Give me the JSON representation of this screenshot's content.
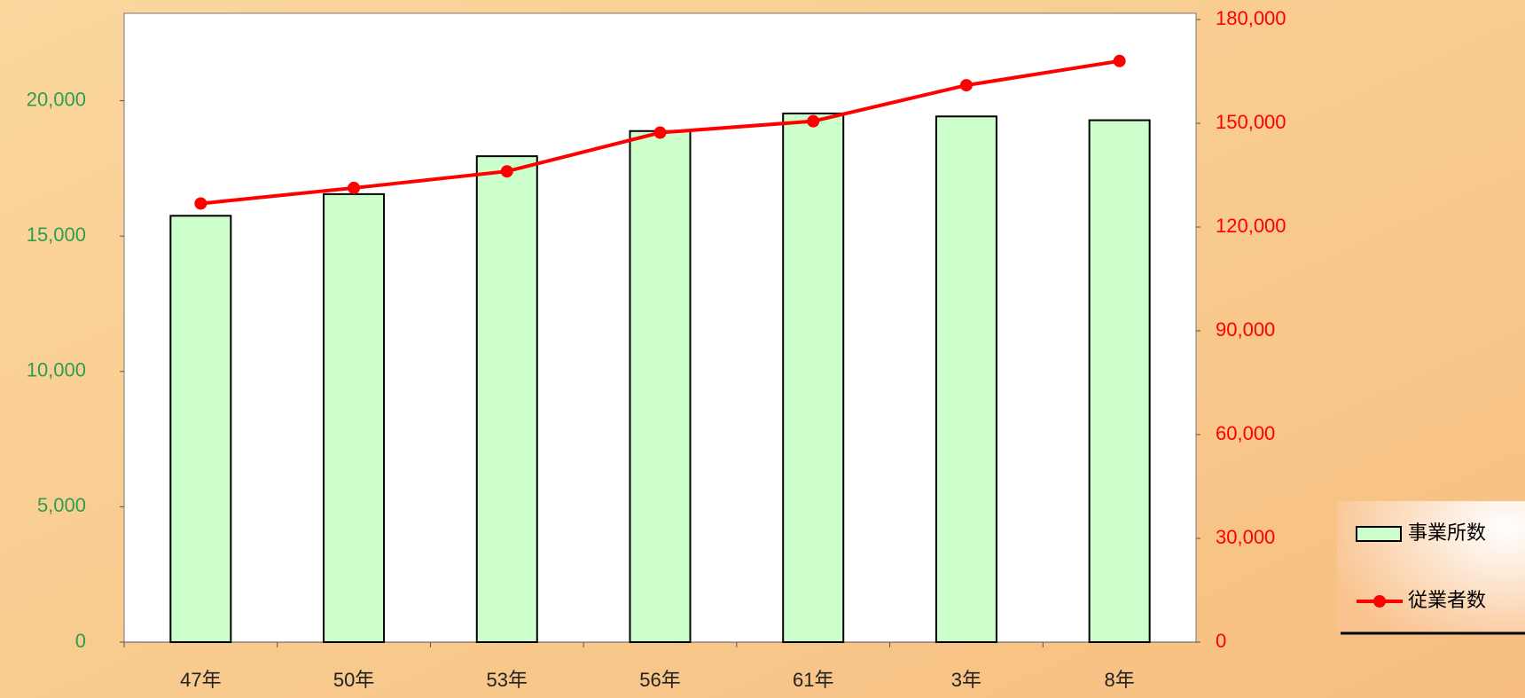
{
  "chart_data": {
    "type": "bar-line",
    "categories": [
      "47年",
      "50年",
      "53年",
      "56年",
      "61年",
      "3年",
      "8年"
    ],
    "series": [
      {
        "name": "事業所数",
        "color": "#ccffcc",
        "type": "bar",
        "axis": "y",
        "values": [
          15750,
          16550,
          17950,
          18880,
          19530,
          19420,
          19280
        ]
      },
      {
        "name": "従業者数",
        "color": "#ff0000",
        "type": "line",
        "axis": "y2",
        "values": [
          126800,
          131300,
          136100,
          147300,
          150600,
          161000,
          168000
        ]
      }
    ],
    "ylim": [
      0,
      23000
    ],
    "yticks": [
      0,
      {
        "value": 5000,
        "label": "5,000"
      },
      {
        "value": 10000,
        "label": "10,000"
      },
      {
        "value": 15000,
        "label": "15,000"
      },
      {
        "value": 20000,
        "label": "20,000"
      }
    ],
    "y2lim": [
      0,
      180000
    ],
    "y2ticks": [
      0,
      {
        "value": 30000,
        "label": "30,000"
      },
      {
        "value": 60000,
        "label": "60,000"
      },
      {
        "value": 90000,
        "label": "90,000"
      },
      {
        "value": 120000,
        "label": "120,000"
      },
      {
        "value": 150000,
        "label": "150,000"
      },
      {
        "value": 180000,
        "label": "180,000"
      }
    ],
    "legend": "bottom-right"
  }
}
